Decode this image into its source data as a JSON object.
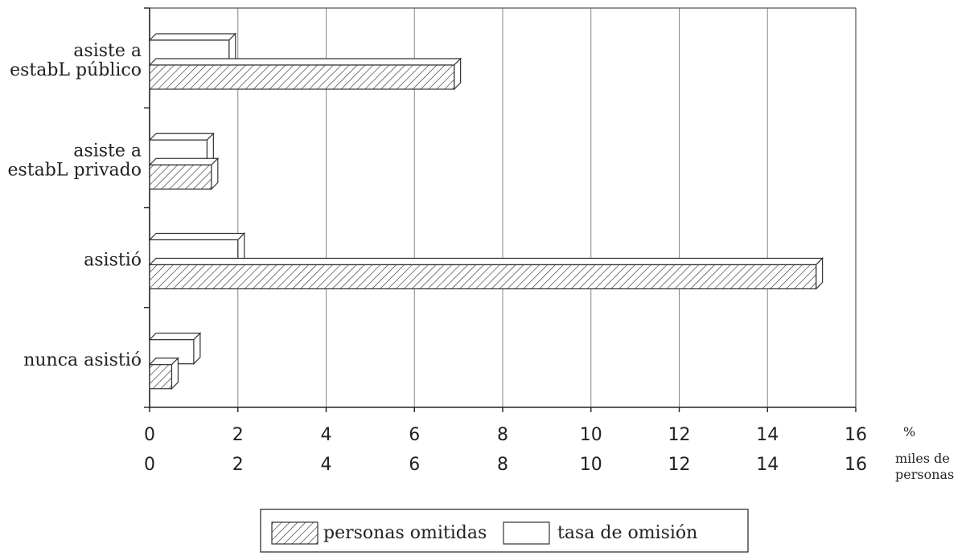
{
  "chart_data": {
    "type": "bar",
    "orientation": "horizontal",
    "categories": [
      [
        "asiste a",
        "estabL público"
      ],
      [
        "asiste a",
        "estabL privado"
      ],
      [
        "asistió"
      ],
      [
        "nunca asistió"
      ]
    ],
    "series": [
      {
        "name": "tasa de omisión",
        "values": [
          1.8,
          1.3,
          2.0,
          1.0
        ],
        "fill": "#ffffff",
        "pattern": "none"
      },
      {
        "name": "personas omitidas",
        "values": [
          6.9,
          1.4,
          15.1,
          0.5
        ],
        "fill": "#ffffff",
        "pattern": "diagonal-hatch"
      }
    ],
    "xlim": [
      0,
      16
    ],
    "ticks": [
      "0",
      "2",
      "4",
      "6",
      "8",
      "10",
      "12",
      "14",
      "16"
    ],
    "axis_units": {
      "top": [
        "%"
      ],
      "bottom": [
        "miles de",
        "personas"
      ]
    },
    "grid": "vertical",
    "legend": {
      "placement": "bottom-center",
      "entries": [
        "personas omitidas",
        "tasa de omisión"
      ]
    }
  }
}
